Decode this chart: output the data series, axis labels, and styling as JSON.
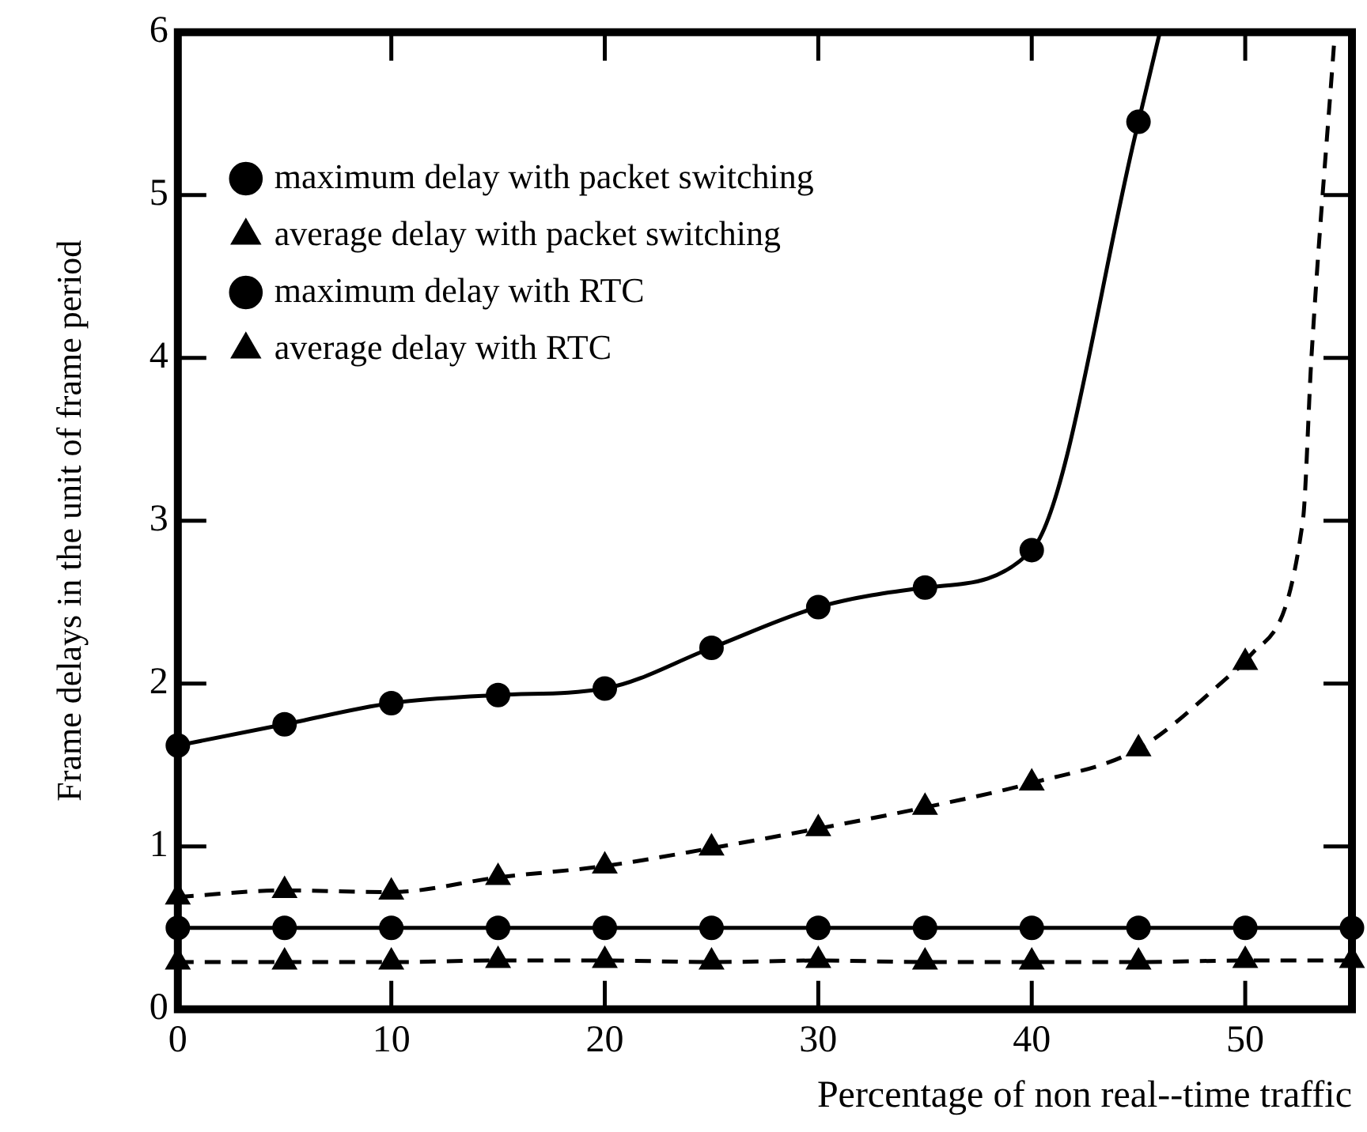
{
  "chart_data": {
    "type": "line",
    "xlabel": "Percentage of non real--time traffic",
    "ylabel": "Frame delays in the unit of frame period",
    "xlim": [
      0,
      55
    ],
    "xticks": [
      0,
      10,
      20,
      30,
      40,
      50
    ],
    "ylim": [
      0,
      6
    ],
    "yticks": [
      0,
      1,
      2,
      3,
      4,
      5,
      6
    ],
    "grid": false,
    "legend": "top left",
    "series": [
      {
        "name": "maximum delay with packet switching",
        "color": "#000000",
        "marker": "circle",
        "line_style": "solid",
        "x": [
          0,
          5,
          10,
          15,
          20,
          25,
          30,
          35,
          40,
          45
        ],
        "values": [
          1.62,
          1.75,
          1.88,
          1.93,
          1.97,
          2.22,
          2.47,
          2.59,
          2.82,
          5.45
        ]
      },
      {
        "name": "average delay with packet switching",
        "color": "#000000",
        "marker": "triangle",
        "line_style": "dashed",
        "x": [
          0,
          5,
          10,
          15,
          20,
          25,
          30,
          35,
          40,
          45,
          50
        ],
        "values": [
          0.69,
          0.73,
          0.72,
          0.81,
          0.88,
          0.99,
          1.11,
          1.24,
          1.39,
          1.6,
          2.13
        ]
      },
      {
        "name": "maximum delay with RTC",
        "color": "#000000",
        "marker": "circle",
        "line_style": "solid",
        "x": [
          0,
          5,
          10,
          15,
          20,
          25,
          30,
          35,
          40,
          45,
          50,
          55
        ],
        "values": [
          0.5,
          0.5,
          0.5,
          0.5,
          0.5,
          0.5,
          0.5,
          0.5,
          0.5,
          0.5,
          0.5,
          0.5
        ]
      },
      {
        "name": "average delay with RTC",
        "color": "#000000",
        "marker": "triangle",
        "line_style": "dashed",
        "x": [
          0,
          5,
          10,
          15,
          20,
          25,
          30,
          35,
          40,
          45,
          50,
          55
        ],
        "values": [
          0.29,
          0.29,
          0.29,
          0.3,
          0.3,
          0.29,
          0.3,
          0.29,
          0.29,
          0.29,
          0.3,
          0.3
        ]
      },
      {
        "color": "#000000",
        "marker": "none",
        "line_style": "solid",
        "x": [
          45,
          46
        ],
        "values": [
          5.45,
          6
        ]
      },
      {
        "color": "#000000",
        "marker": "none",
        "line_style": "dashed",
        "x": [
          50,
          52.7,
          53.1,
          54.2
        ],
        "values": [
          2.13,
          3.0,
          4.0,
          6
        ]
      }
    ]
  }
}
